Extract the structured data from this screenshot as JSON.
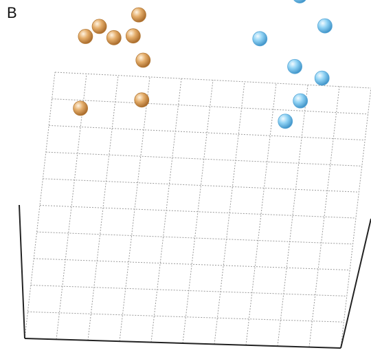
{
  "panel_label": "B",
  "chart_data": {
    "type": "scatter",
    "title": "",
    "xlabel": "",
    "ylabel": "",
    "zlabel": "",
    "projection": "3d",
    "grid": true,
    "grid_divisions": 10,
    "legend": "none",
    "colors": {
      "orange": "#d89a52",
      "blue": "#7ec8ee",
      "grid": "#9a9a9a",
      "axis": "#222222"
    },
    "series": [
      {
        "color": "orange",
        "points": [
          {
            "x": 0.13,
            "y": 0.65,
            "z": 1.0
          },
          {
            "x": 0.14,
            "y": 0.38,
            "z": 1.0
          },
          {
            "x": 0.17,
            "y": 0.69,
            "z": 1.0
          },
          {
            "x": 0.22,
            "y": 0.65,
            "z": 1.0
          },
          {
            "x": 0.29,
            "y": 0.74,
            "z": 1.0
          },
          {
            "x": 0.28,
            "y": 0.66,
            "z": 1.0
          },
          {
            "x": 0.32,
            "y": 0.57,
            "z": 1.0
          },
          {
            "x": 0.33,
            "y": 0.42,
            "z": 1.0
          }
        ]
      },
      {
        "color": "blue",
        "points": [
          {
            "x": 0.79,
            "y": 0.84,
            "z": 1.0
          },
          {
            "x": 0.88,
            "y": 0.73,
            "z": 1.0
          },
          {
            "x": 0.68,
            "y": 0.67,
            "z": 1.0
          },
          {
            "x": 0.8,
            "y": 0.57,
            "z": 1.0
          },
          {
            "x": 0.89,
            "y": 0.53,
            "z": 1.0
          },
          {
            "x": 0.83,
            "y": 0.44,
            "z": 1.0
          },
          {
            "x": 0.79,
            "y": 0.36,
            "z": 1.0
          }
        ]
      }
    ]
  }
}
